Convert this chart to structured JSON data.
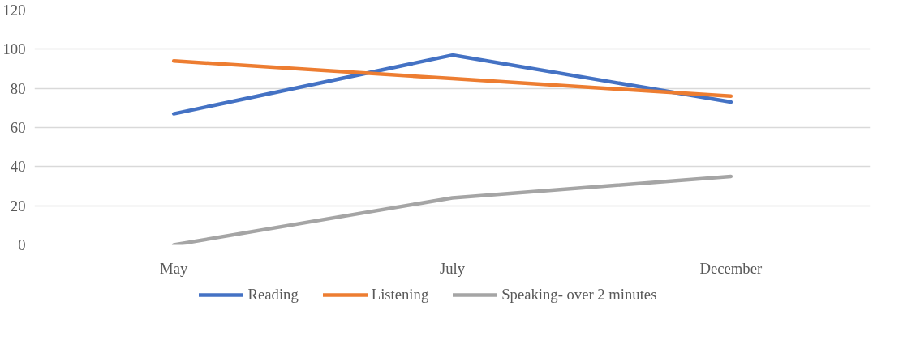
{
  "chart_data": {
    "type": "line",
    "categories": [
      "May",
      "July",
      "December"
    ],
    "series": [
      {
        "name": "Reading",
        "color": "#4472c4",
        "values": [
          67,
          97,
          73
        ]
      },
      {
        "name": "Listening",
        "color": "#ed7d31",
        "values": [
          94,
          85,
          76
        ]
      },
      {
        "name": "Speaking- over 2 minutes",
        "color": "#a5a5a5",
        "values": [
          0,
          24,
          35
        ]
      }
    ],
    "ylim": [
      0,
      120
    ],
    "yticks": [
      0,
      20,
      40,
      60,
      80,
      100,
      120
    ],
    "grid": "y",
    "legend": "bottom",
    "marker": "none",
    "line_style": "solid"
  }
}
